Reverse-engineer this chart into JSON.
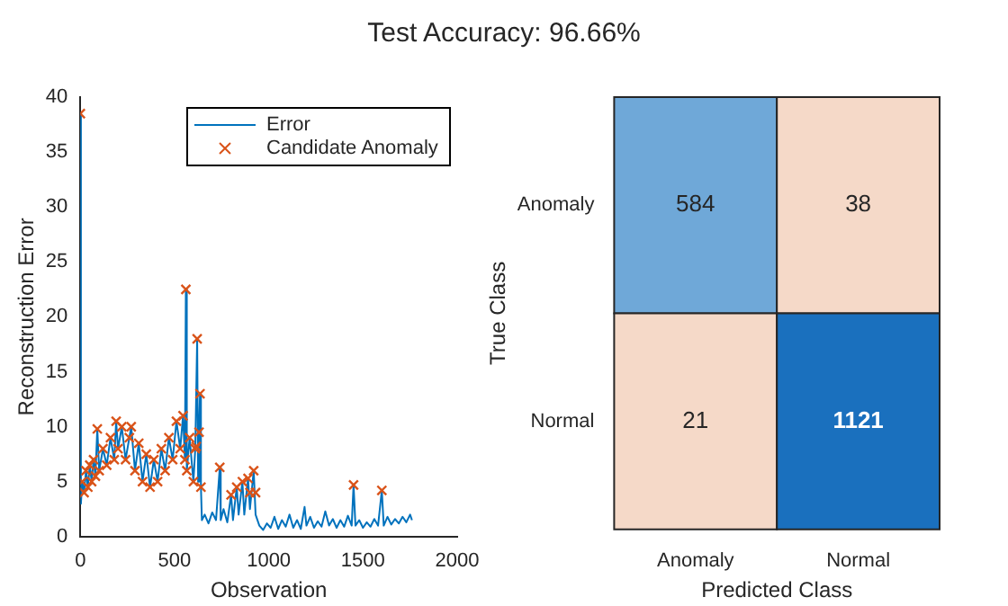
{
  "chart_data": [
    {
      "type": "line",
      "title": "Test Accuracy: 96.66%",
      "xlabel": "Observation",
      "ylabel": "Reconstruction Error",
      "xlim": [
        0,
        2000
      ],
      "xticks": [
        0,
        500,
        1000,
        1500,
        2000
      ],
      "ylim": [
        0,
        40
      ],
      "yticks": [
        0,
        5,
        10,
        15,
        20,
        25,
        30,
        35,
        40
      ],
      "legend": "top right",
      "series": [
        {
          "type": "line",
          "name": "Error",
          "color": "#0072bd",
          "marker": "none",
          "x": [
            0,
            3,
            10,
            20,
            30,
            40,
            50,
            60,
            70,
            80,
            90,
            100,
            120,
            140,
            160,
            180,
            190,
            200,
            220,
            240,
            260,
            270,
            290,
            310,
            330,
            350,
            370,
            390,
            410,
            430,
            450,
            470,
            490,
            510,
            530,
            545,
            555,
            560,
            565,
            580,
            600,
            610,
            620,
            625,
            630,
            635,
            640,
            645,
            660,
            680,
            700,
            720,
            740,
            745,
            760,
            780,
            800,
            810,
            830,
            840,
            860,
            870,
            890,
            900,
            920,
            930,
            950,
            970,
            990,
            1010,
            1030,
            1050,
            1070,
            1090,
            1110,
            1130,
            1150,
            1170,
            1190,
            1200,
            1220,
            1240,
            1260,
            1280,
            1300,
            1320,
            1340,
            1360,
            1380,
            1400,
            1420,
            1440,
            1450,
            1460,
            1480,
            1500,
            1520,
            1540,
            1560,
            1580,
            1600,
            1610,
            1630,
            1650,
            1670,
            1690,
            1710,
            1730,
            1750,
            1760
          ],
          "values": [
            38.5,
            3,
            5,
            4,
            6,
            4.5,
            6.5,
            5,
            7,
            5.5,
            9.8,
            6,
            8,
            6.5,
            9,
            7,
            10.5,
            8,
            10,
            7,
            9,
            10,
            6,
            8.5,
            5,
            7.5,
            4.5,
            7,
            5,
            8,
            6,
            9,
            7,
            10.5,
            8,
            11,
            7,
            22.5,
            6,
            9,
            5,
            8,
            18,
            5,
            9.5,
            13,
            4.5,
            1.5,
            2,
            1.2,
            2.2,
            1.5,
            6.3,
            1.5,
            2.5,
            1.3,
            3.8,
            1.5,
            4.5,
            2,
            5,
            2,
            5.3,
            2.5,
            6,
            2,
            1,
            0.6,
            1.2,
            0.8,
            1.8,
            0.7,
            1.5,
            0.9,
            2,
            0.8,
            1.5,
            0.7,
            2.7,
            1,
            1.8,
            0.8,
            1.4,
            0.9,
            2.3,
            1,
            1.6,
            0.8,
            1.5,
            0.9,
            1.9,
            1,
            4.7,
            1,
            1.5,
            0.8,
            1.3,
            0.9,
            1.6,
            1,
            4.2,
            1,
            1.8,
            1.1,
            1.6,
            1.2,
            1.8,
            1.3,
            2,
            1.5
          ]
        },
        {
          "type": "scatter",
          "name": "Candidate Anomaly",
          "color": "#d95319",
          "marker": "cross",
          "x": [
            0,
            10,
            20,
            30,
            40,
            50,
            60,
            70,
            80,
            90,
            100,
            120,
            140,
            160,
            180,
            190,
            200,
            220,
            240,
            260,
            270,
            290,
            310,
            330,
            350,
            370,
            390,
            410,
            430,
            450,
            470,
            490,
            510,
            530,
            545,
            555,
            560,
            565,
            580,
            600,
            610,
            615,
            620,
            630,
            635,
            640,
            740,
            800,
            830,
            860,
            890,
            900,
            920,
            930,
            1450,
            1600
          ],
          "values": [
            38.5,
            5,
            4,
            6,
            4.5,
            6.5,
            5,
            7,
            5.5,
            9.8,
            6,
            8,
            6.5,
            9,
            7,
            10.5,
            8,
            10,
            7,
            9,
            10,
            6,
            8.5,
            5,
            7.5,
            4.5,
            7,
            5,
            8,
            6,
            9,
            7,
            10.5,
            8,
            11,
            7,
            22.5,
            6,
            9,
            5,
            8,
            8.2,
            18,
            9.5,
            13,
            4.5,
            6.3,
            3.8,
            4.5,
            5,
            5.3,
            4,
            6,
            4,
            4.7,
            4.2
          ]
        }
      ]
    },
    {
      "type": "heatmap",
      "xlabel": "Predicted Class",
      "ylabel": "True Class",
      "categories": [
        "Anomaly",
        "Normal"
      ],
      "y_categories": [
        "Anomaly",
        "Normal"
      ],
      "cells": [
        [
          584,
          38
        ],
        [
          21,
          1121
        ]
      ],
      "colors": [
        [
          "#6fa8d8",
          "#f5d9c8"
        ],
        [
          "#f5d9c8",
          "#1a70be"
        ]
      ],
      "data_labels": true
    }
  ]
}
